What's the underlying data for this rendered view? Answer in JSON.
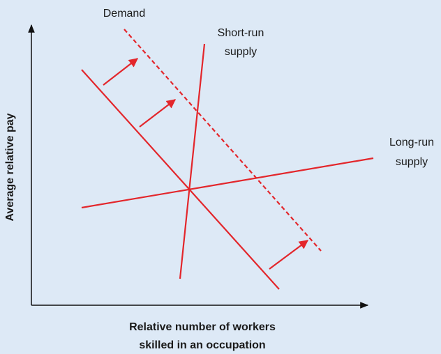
{
  "diagram": {
    "labels": {
      "demand": "Demand",
      "short_run_supply": [
        "Short-run",
        "supply"
      ],
      "long_run_supply": [
        "Long-run",
        "supply"
      ]
    },
    "axes": {
      "y_label": "Average relative pay",
      "x_label": [
        "Relative number of workers",
        "skilled in an occupation"
      ]
    }
  }
}
